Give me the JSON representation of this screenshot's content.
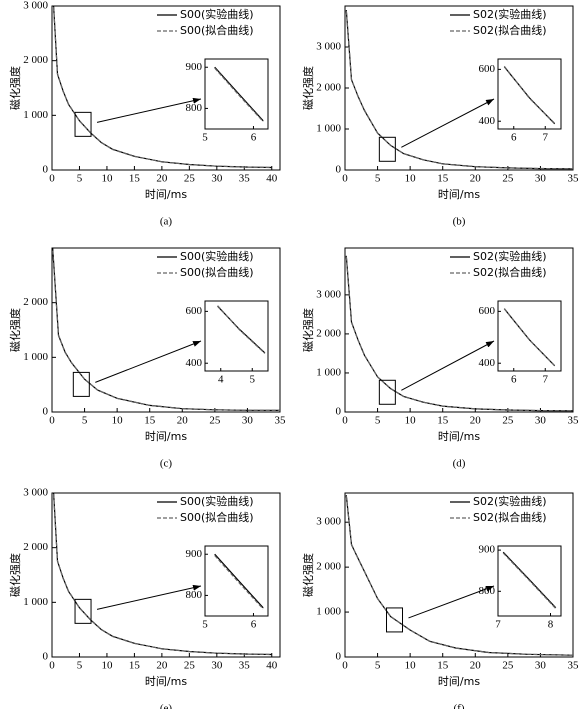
{
  "chart_data": [
    {
      "type": "line",
      "caption": "(a)",
      "xlabel": "时间/ms",
      "ylabel": "磁化强度",
      "xlim": [
        0,
        41.5
      ],
      "ylim": [
        0,
        3000
      ],
      "xticks": [
        0,
        5,
        10,
        15,
        20,
        25,
        30,
        35,
        40
      ],
      "yticks": [
        0,
        {
          "value": 1000,
          "label": "1 000"
        },
        {
          "value": 2000,
          "label": "2 000"
        },
        {
          "value": 3000,
          "label": "3 000"
        }
      ],
      "x": [
        0.3,
        1,
        2,
        3,
        5,
        7,
        9,
        11,
        15,
        20,
        25,
        30,
        35,
        40
      ],
      "series": [
        {
          "name": "S00(实验曲线)",
          "color": "#000000",
          "style": "solid",
          "values": [
            3000,
            1750,
            1450,
            1200,
            900,
            680,
            500,
            380,
            250,
            150,
            100,
            70,
            55,
            45
          ]
        },
        {
          "name": "S00(拟合曲线)",
          "color": "#666666",
          "style": "dashed",
          "values": [
            2980,
            1760,
            1440,
            1210,
            895,
            685,
            505,
            375,
            248,
            152,
            98,
            72,
            54,
            46
          ]
        }
      ],
      "inset": {
        "xlim": [
          5,
          6.3
        ],
        "ylim": [
          750,
          920
        ],
        "xticks": [
          5,
          6
        ],
        "yticks": [
          800,
          900
        ],
        "x": [
          5.2,
          5.7,
          6.2
        ],
        "series": [
          {
            "values": [
              900,
              835,
              770
            ]
          },
          {
            "values": [
              898,
              832,
              768
            ]
          }
        ]
      }
    },
    {
      "type": "line",
      "caption": "(b)",
      "xlabel": "时间/ms",
      "ylabel": "磁化强度",
      "xlim": [
        0,
        35
      ],
      "ylim": [
        0,
        4000
      ],
      "xticks": [
        0,
        5,
        10,
        15,
        20,
        25,
        30,
        35
      ],
      "yticks": [
        0,
        {
          "value": 1000,
          "label": "1 000"
        },
        {
          "value": 2000,
          "label": "2 000"
        },
        {
          "value": 3000,
          "label": "3 000"
        }
      ],
      "x": [
        0.2,
        1,
        2,
        3,
        5,
        7,
        9,
        12,
        15,
        20,
        25,
        30,
        35
      ],
      "series": [
        {
          "name": "S02(实验曲线)",
          "color": "#000000",
          "style": "solid",
          "values": [
            3900,
            2200,
            1800,
            1450,
            900,
            600,
            400,
            250,
            150,
            80,
            50,
            35,
            30
          ]
        },
        {
          "name": "S02(拟合曲线)",
          "color": "#666666",
          "style": "dashed",
          "values": [
            3880,
            2210,
            1790,
            1460,
            895,
            605,
            398,
            252,
            148,
            82,
            50,
            36,
            30
          ]
        }
      ],
      "inset": {
        "xlim": [
          5.5,
          7.5
        ],
        "ylim": [
          370,
          640
        ],
        "xticks": [
          6,
          7
        ],
        "yticks": [
          400,
          600
        ],
        "x": [
          5.7,
          6.5,
          7.3
        ],
        "series": [
          {
            "values": [
              610,
              490,
              390
            ]
          },
          {
            "values": [
              612,
              488,
              392
            ]
          }
        ]
      }
    },
    {
      "type": "line",
      "caption": "(c)",
      "xlabel": "时间/ms",
      "ylabel": "磁化强度",
      "xlim": [
        0,
        35
      ],
      "ylim": [
        0,
        3000
      ],
      "xticks": [
        0,
        5,
        10,
        15,
        20,
        25,
        30,
        35
      ],
      "yticks": [
        0,
        {
          "value": 1000,
          "label": "1 000"
        },
        {
          "value": 2000,
          "label": "2 000"
        }
      ],
      "x": [
        0.1,
        1,
        2,
        3,
        5,
        7,
        10,
        15,
        20,
        25,
        30,
        35
      ],
      "series": [
        {
          "name": "S00(实验曲线)",
          "color": "#000000",
          "style": "solid",
          "values": [
            3000,
            1400,
            1100,
            900,
            600,
            400,
            250,
            120,
            60,
            40,
            32,
            30
          ]
        },
        {
          "name": "S00(拟合曲线)",
          "color": "#666666",
          "style": "dashed",
          "values": [
            2950,
            1410,
            1090,
            905,
            598,
            402,
            248,
            122,
            62,
            40,
            32,
            30
          ]
        }
      ],
      "inset": {
        "xlim": [
          3.5,
          5.5
        ],
        "ylim": [
          370,
          640
        ],
        "xticks": [
          4,
          5
        ],
        "yticks": [
          400,
          600
        ],
        "x": [
          3.9,
          4.6,
          5.4
        ],
        "series": [
          {
            "values": [
              620,
              530,
              440
            ]
          },
          {
            "values": [
              622,
              528,
              438
            ]
          }
        ]
      }
    },
    {
      "type": "line",
      "caption": "(d)",
      "xlabel": "时间/ms",
      "ylabel": "磁化强度",
      "xlim": [
        0,
        35
      ],
      "ylim": [
        0,
        4200
      ],
      "xticks": [
        0,
        5,
        10,
        15,
        20,
        25,
        30,
        35
      ],
      "yticks": [
        0,
        {
          "value": 1000,
          "label": "1 000"
        },
        {
          "value": 2000,
          "label": "2 000"
        },
        {
          "value": 3000,
          "label": "3 000"
        }
      ],
      "x": [
        0.2,
        1,
        2,
        3,
        5,
        7,
        9,
        12,
        15,
        20,
        25,
        30,
        35
      ],
      "series": [
        {
          "name": "S02(实验曲线)",
          "color": "#000000",
          "style": "solid",
          "values": [
            4000,
            2300,
            1850,
            1450,
            900,
            600,
            400,
            250,
            150,
            80,
            50,
            35,
            30
          ]
        },
        {
          "name": "S02(拟合曲线)",
          "color": "#666666",
          "style": "dashed",
          "values": [
            3980,
            2310,
            1840,
            1460,
            895,
            605,
            398,
            252,
            148,
            82,
            50,
            36,
            30
          ]
        }
      ],
      "inset": {
        "xlim": [
          5.5,
          7.5
        ],
        "ylim": [
          370,
          640
        ],
        "xticks": [
          6,
          7
        ],
        "yticks": [
          400,
          600
        ],
        "x": [
          5.7,
          6.5,
          7.3
        ],
        "series": [
          {
            "values": [
              610,
              490,
              390
            ]
          },
          {
            "values": [
              611,
              489,
              391
            ]
          }
        ]
      }
    },
    {
      "type": "line",
      "caption": "(e)",
      "xlabel": "时间/ms",
      "ylabel": "磁化强度",
      "xlim": [
        0,
        41.5
      ],
      "ylim": [
        0,
        3000
      ],
      "xticks": [
        0,
        5,
        10,
        15,
        20,
        25,
        30,
        35,
        40
      ],
      "yticks": [
        0,
        {
          "value": 1000,
          "label": "1 000"
        },
        {
          "value": 2000,
          "label": "2 000"
        },
        {
          "value": 3000,
          "label": "3 000"
        }
      ],
      "x": [
        0.3,
        1,
        2,
        3,
        5,
        7,
        9,
        11,
        15,
        20,
        25,
        30,
        35,
        40
      ],
      "series": [
        {
          "name": "S00(实验曲线)",
          "color": "#000000",
          "style": "solid",
          "values": [
            3000,
            1750,
            1450,
            1200,
            900,
            680,
            500,
            380,
            250,
            150,
            100,
            70,
            55,
            45
          ]
        },
        {
          "name": "S00(拟合曲线)",
          "color": "#666666",
          "style": "dashed",
          "values": [
            2980,
            1760,
            1440,
            1210,
            895,
            685,
            505,
            375,
            248,
            152,
            98,
            72,
            54,
            46
          ]
        }
      ],
      "inset": {
        "xlim": [
          5,
          6.3
        ],
        "ylim": [
          750,
          920
        ],
        "xticks": [
          5,
          6
        ],
        "yticks": [
          800,
          900
        ],
        "x": [
          5.2,
          5.7,
          6.2
        ],
        "series": [
          {
            "values": [
              900,
              835,
              770
            ]
          },
          {
            "values": [
              897,
              831,
              767
            ]
          }
        ]
      }
    },
    {
      "type": "line",
      "caption": "(f)",
      "xlabel": "时间/ms",
      "ylabel": "磁化强度",
      "xlim": [
        0,
        35
      ],
      "ylim": [
        0,
        3650
      ],
      "xticks": [
        0,
        5,
        10,
        15,
        20,
        25,
        30,
        35
      ],
      "yticks": [
        0,
        {
          "value": 1000,
          "label": "1 000"
        },
        {
          "value": 2000,
          "label": "2 000"
        },
        {
          "value": 3000,
          "label": "3 000"
        }
      ],
      "x": [
        0.2,
        1,
        2,
        3,
        5,
        7,
        10,
        13,
        17,
        22,
        28,
        35
      ],
      "series": [
        {
          "name": "S02(实验曲线)",
          "color": "#000000",
          "style": "solid",
          "values": [
            3600,
            2500,
            2200,
            1900,
            1300,
            900,
            600,
            350,
            200,
            100,
            60,
            40
          ]
        },
        {
          "name": "S02(拟合曲线)",
          "color": "#666666",
          "style": "dashed",
          "values": [
            3580,
            2510,
            2190,
            1905,
            1298,
            905,
            598,
            352,
            198,
            102,
            60,
            40
          ]
        }
      ],
      "inset": {
        "xlim": [
          7,
          8.2
        ],
        "ylim": [
          740,
          910
        ],
        "xticks": [
          7,
          8
        ],
        "yticks": [
          800,
          900
        ],
        "x": [
          7.1,
          7.6,
          8.1
        ],
        "series": [
          {
            "values": [
              895,
              828,
              760
            ]
          },
          {
            "values": [
              893,
              826,
              758
            ]
          }
        ]
      }
    }
  ]
}
